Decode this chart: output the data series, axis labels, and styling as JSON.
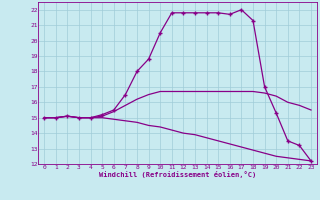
{
  "title": "",
  "xlabel": "Windchill (Refroidissement éolien,°C)",
  "ylabel": "",
  "background_color": "#c8eaf0",
  "grid_color": "#a0ccd8",
  "line_color": "#880088",
  "xlim": [
    -0.5,
    23.5
  ],
  "ylim": [
    12,
    22.5
  ],
  "xticks": [
    0,
    1,
    2,
    3,
    4,
    5,
    6,
    7,
    8,
    9,
    10,
    11,
    12,
    13,
    14,
    15,
    16,
    17,
    18,
    19,
    20,
    21,
    22,
    23
  ],
  "yticks": [
    12,
    13,
    14,
    15,
    16,
    17,
    18,
    19,
    20,
    21,
    22
  ],
  "series": [
    {
      "x": [
        0,
        1,
        2,
        3,
        4,
        5,
        6,
        7,
        8,
        9,
        10,
        11,
        12,
        13,
        14,
        15,
        16,
        17,
        18,
        19,
        20,
        21,
        22,
        23
      ],
      "y": [
        15,
        15,
        15.1,
        15,
        15,
        15.2,
        15.5,
        16.5,
        18,
        18.8,
        20.5,
        21.8,
        21.8,
        21.8,
        21.8,
        21.8,
        21.7,
        22.0,
        21.3,
        17.0,
        15.3,
        13.5,
        13.2,
        12.2
      ],
      "marker": "+"
    },
    {
      "x": [
        0,
        1,
        2,
        3,
        4,
        5,
        6,
        7,
        8,
        9,
        10,
        11,
        12,
        13,
        14,
        15,
        16,
        17,
        18,
        19,
        20,
        21,
        22,
        23
      ],
      "y": [
        15,
        15,
        15.1,
        15,
        15,
        15.1,
        15.4,
        15.8,
        16.2,
        16.5,
        16.7,
        16.7,
        16.7,
        16.7,
        16.7,
        16.7,
        16.7,
        16.7,
        16.7,
        16.6,
        16.4,
        16.0,
        15.8,
        15.5
      ],
      "marker": null
    },
    {
      "x": [
        0,
        1,
        2,
        3,
        4,
        5,
        6,
        7,
        8,
        9,
        10,
        11,
        12,
        13,
        14,
        15,
        16,
        17,
        18,
        19,
        20,
        21,
        22,
        23
      ],
      "y": [
        15,
        15,
        15.1,
        15,
        15,
        15.0,
        14.9,
        14.8,
        14.7,
        14.5,
        14.4,
        14.2,
        14.0,
        13.9,
        13.7,
        13.5,
        13.3,
        13.1,
        12.9,
        12.7,
        12.5,
        12.4,
        12.3,
        12.2
      ],
      "marker": null
    }
  ]
}
